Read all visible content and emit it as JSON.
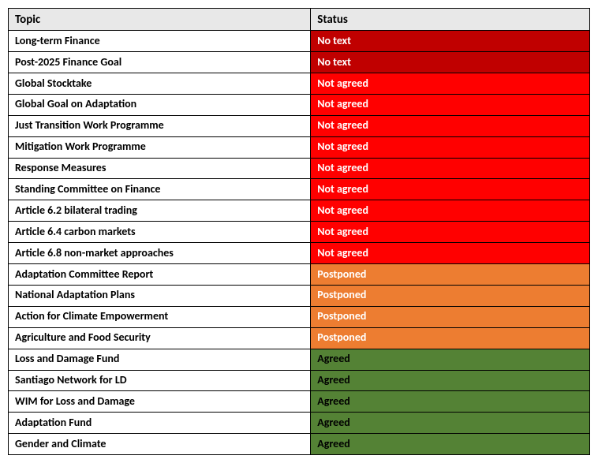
{
  "table": {
    "headers": {
      "topic": "Topic",
      "status": "Status"
    },
    "status_colors": {
      "no_text": {
        "bg": "#c00000",
        "fg": "#ffffff"
      },
      "not_agreed": {
        "bg": "#ff0000",
        "fg": "#ffffff"
      },
      "postponed": {
        "bg": "#ed7d31",
        "fg": "#ffffff"
      },
      "agreed": {
        "bg": "#548235",
        "fg": "#000000"
      }
    },
    "rows": [
      {
        "topic": "Long-term Finance",
        "status": "No text",
        "status_key": "no_text"
      },
      {
        "topic": "Post-2025 Finance Goal",
        "status": "No text",
        "status_key": "no_text"
      },
      {
        "topic": "Global Stocktake",
        "status": "Not agreed",
        "status_key": "not_agreed"
      },
      {
        "topic": "Global Goal on Adaptation",
        "status": "Not agreed",
        "status_key": "not_agreed"
      },
      {
        "topic": "Just Transition Work Programme",
        "status": "Not agreed",
        "status_key": "not_agreed"
      },
      {
        "topic": "Mitigation Work Programme",
        "status": "Not agreed",
        "status_key": "not_agreed"
      },
      {
        "topic": "Response Measures",
        "status": "Not agreed",
        "status_key": "not_agreed"
      },
      {
        "topic": "Standing Committee on Finance",
        "status": "Not agreed",
        "status_key": "not_agreed"
      },
      {
        "topic": "Article 6.2 bilateral trading",
        "status": "Not agreed",
        "status_key": "not_agreed"
      },
      {
        "topic": "Article 6.4 carbon markets",
        "status": "Not agreed",
        "status_key": "not_agreed"
      },
      {
        "topic": "Article 6.8 non-market approaches",
        "status": "Not agreed",
        "status_key": "not_agreed"
      },
      {
        "topic": "Adaptation Committee Report",
        "status": "Postponed",
        "status_key": "postponed"
      },
      {
        "topic": "National Adaptation Plans",
        "status": "Postponed",
        "status_key": "postponed"
      },
      {
        "topic": "Action for Climate Empowerment",
        "status": "Postponed",
        "status_key": "postponed"
      },
      {
        "topic": "Agriculture and Food Security",
        "status": "Postponed",
        "status_key": "postponed"
      },
      {
        "topic": "Loss and Damage Fund",
        "status": "Agreed",
        "status_key": "agreed"
      },
      {
        "topic": "Santiago Network for LD",
        "status": "Agreed",
        "status_key": "agreed"
      },
      {
        "topic": "WIM for Loss and Damage",
        "status": "Agreed",
        "status_key": "agreed"
      },
      {
        "topic": "Adaptation Fund",
        "status": "Agreed",
        "status_key": "agreed"
      },
      {
        "topic": "Gender and Climate",
        "status": "Agreed",
        "status_key": "agreed"
      }
    ]
  }
}
